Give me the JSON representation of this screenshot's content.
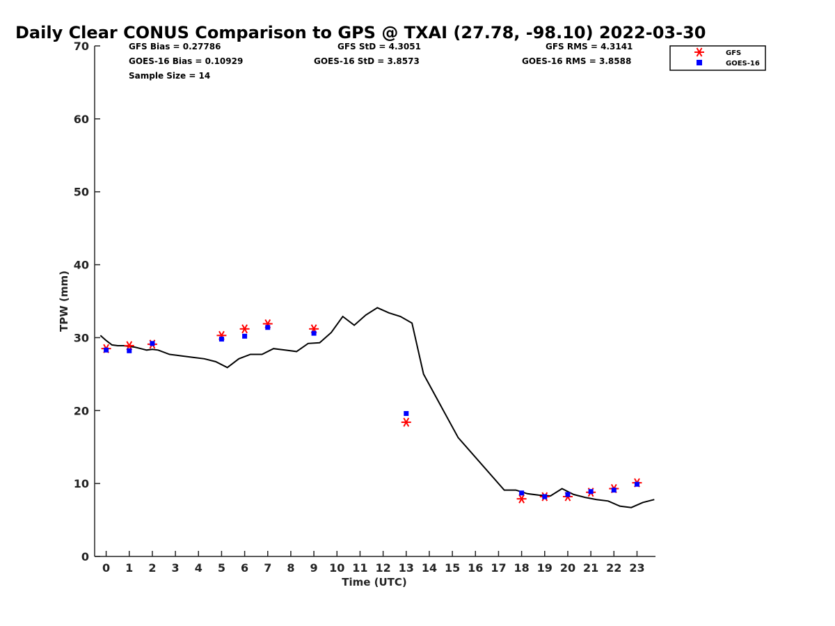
{
  "chart_data": {
    "type": "scatter",
    "title": "Daily Clear CONUS Comparison to GPS @ TXAI (27.78, -98.10) 2022-03-30",
    "xlabel": "Time (UTC)",
    "ylabel": "TPW (mm)",
    "xlim": [
      -0.5,
      23.8
    ],
    "ylim": [
      0,
      70
    ],
    "xticks": [
      0,
      1,
      2,
      3,
      4,
      5,
      6,
      7,
      8,
      9,
      10,
      11,
      12,
      13,
      14,
      15,
      16,
      17,
      18,
      19,
      20,
      21,
      22,
      23
    ],
    "yticks": [
      0,
      10,
      20,
      30,
      40,
      50,
      60,
      70
    ],
    "stats": {
      "gfs_bias": "GFS Bias = 0.27786",
      "goes_bias": "GOES-16 Bias = 0.10929",
      "sample_size": "Sample Size = 14",
      "gfs_std": "GFS StD = 4.3051",
      "goes_std": "GOES-16 StD = 3.8573",
      "gfs_rms": "GFS RMS = 4.3141",
      "goes_rms": "GOES-16 RMS = 3.8588"
    },
    "legend": {
      "position": "top-right",
      "entries": [
        "GFS",
        "GOES-16"
      ]
    },
    "series": [
      {
        "name": "GPS",
        "style": "line",
        "color": "#000000",
        "x": [
          -0.25,
          0,
          0.25,
          0.5,
          0.75,
          1,
          1.25,
          1.5,
          1.75,
          2,
          2.25,
          2.75,
          3.25,
          3.75,
          4.25,
          4.75,
          5.25,
          5.75,
          6.25,
          6.75,
          7.25,
          7.75,
          8.25,
          8.75,
          9.25,
          9.75,
          10.25,
          10.75,
          11.25,
          11.75,
          12.25,
          12.75,
          13.25,
          13.75,
          15.25,
          17.25,
          17.75,
          18.25,
          18.75,
          19.25,
          19.75,
          20.25,
          20.75,
          21.25,
          21.75,
          22.25,
          22.75,
          23.25,
          23.75
        ],
        "y": [
          30.3,
          29.6,
          29.0,
          28.9,
          28.9,
          28.8,
          28.7,
          28.5,
          28.3,
          28.4,
          28.3,
          27.7,
          27.5,
          27.3,
          27.1,
          26.7,
          25.9,
          27.1,
          27.7,
          27.7,
          28.5,
          28.3,
          28.1,
          29.2,
          29.3,
          30.7,
          32.9,
          31.7,
          33.1,
          34.1,
          33.4,
          32.9,
          32.0,
          25.0,
          16.3,
          9.1,
          9.1,
          8.6,
          8.4,
          8.3,
          9.3,
          8.5,
          8.1,
          7.8,
          7.6,
          6.9,
          6.7,
          7.4,
          7.8
        ]
      },
      {
        "name": "GFS",
        "style": "asterisk",
        "color": "#ff0000",
        "x": [
          0,
          1,
          2,
          5,
          6,
          7,
          9,
          13,
          18,
          19,
          20,
          21,
          22,
          23
        ],
        "y": [
          28.5,
          28.9,
          29.1,
          30.3,
          31.2,
          31.9,
          31.2,
          18.4,
          7.9,
          8.2,
          8.2,
          8.8,
          9.3,
          10.1
        ]
      },
      {
        "name": "GOES-16",
        "style": "square",
        "color": "#0000ff",
        "x": [
          0,
          1,
          2,
          5,
          6,
          7,
          9,
          13,
          18,
          19,
          20,
          21,
          22,
          23
        ],
        "y": [
          28.3,
          28.2,
          29.2,
          29.8,
          30.2,
          31.4,
          30.6,
          19.6,
          8.7,
          8.2,
          8.5,
          8.9,
          9.1,
          9.9
        ]
      }
    ]
  }
}
